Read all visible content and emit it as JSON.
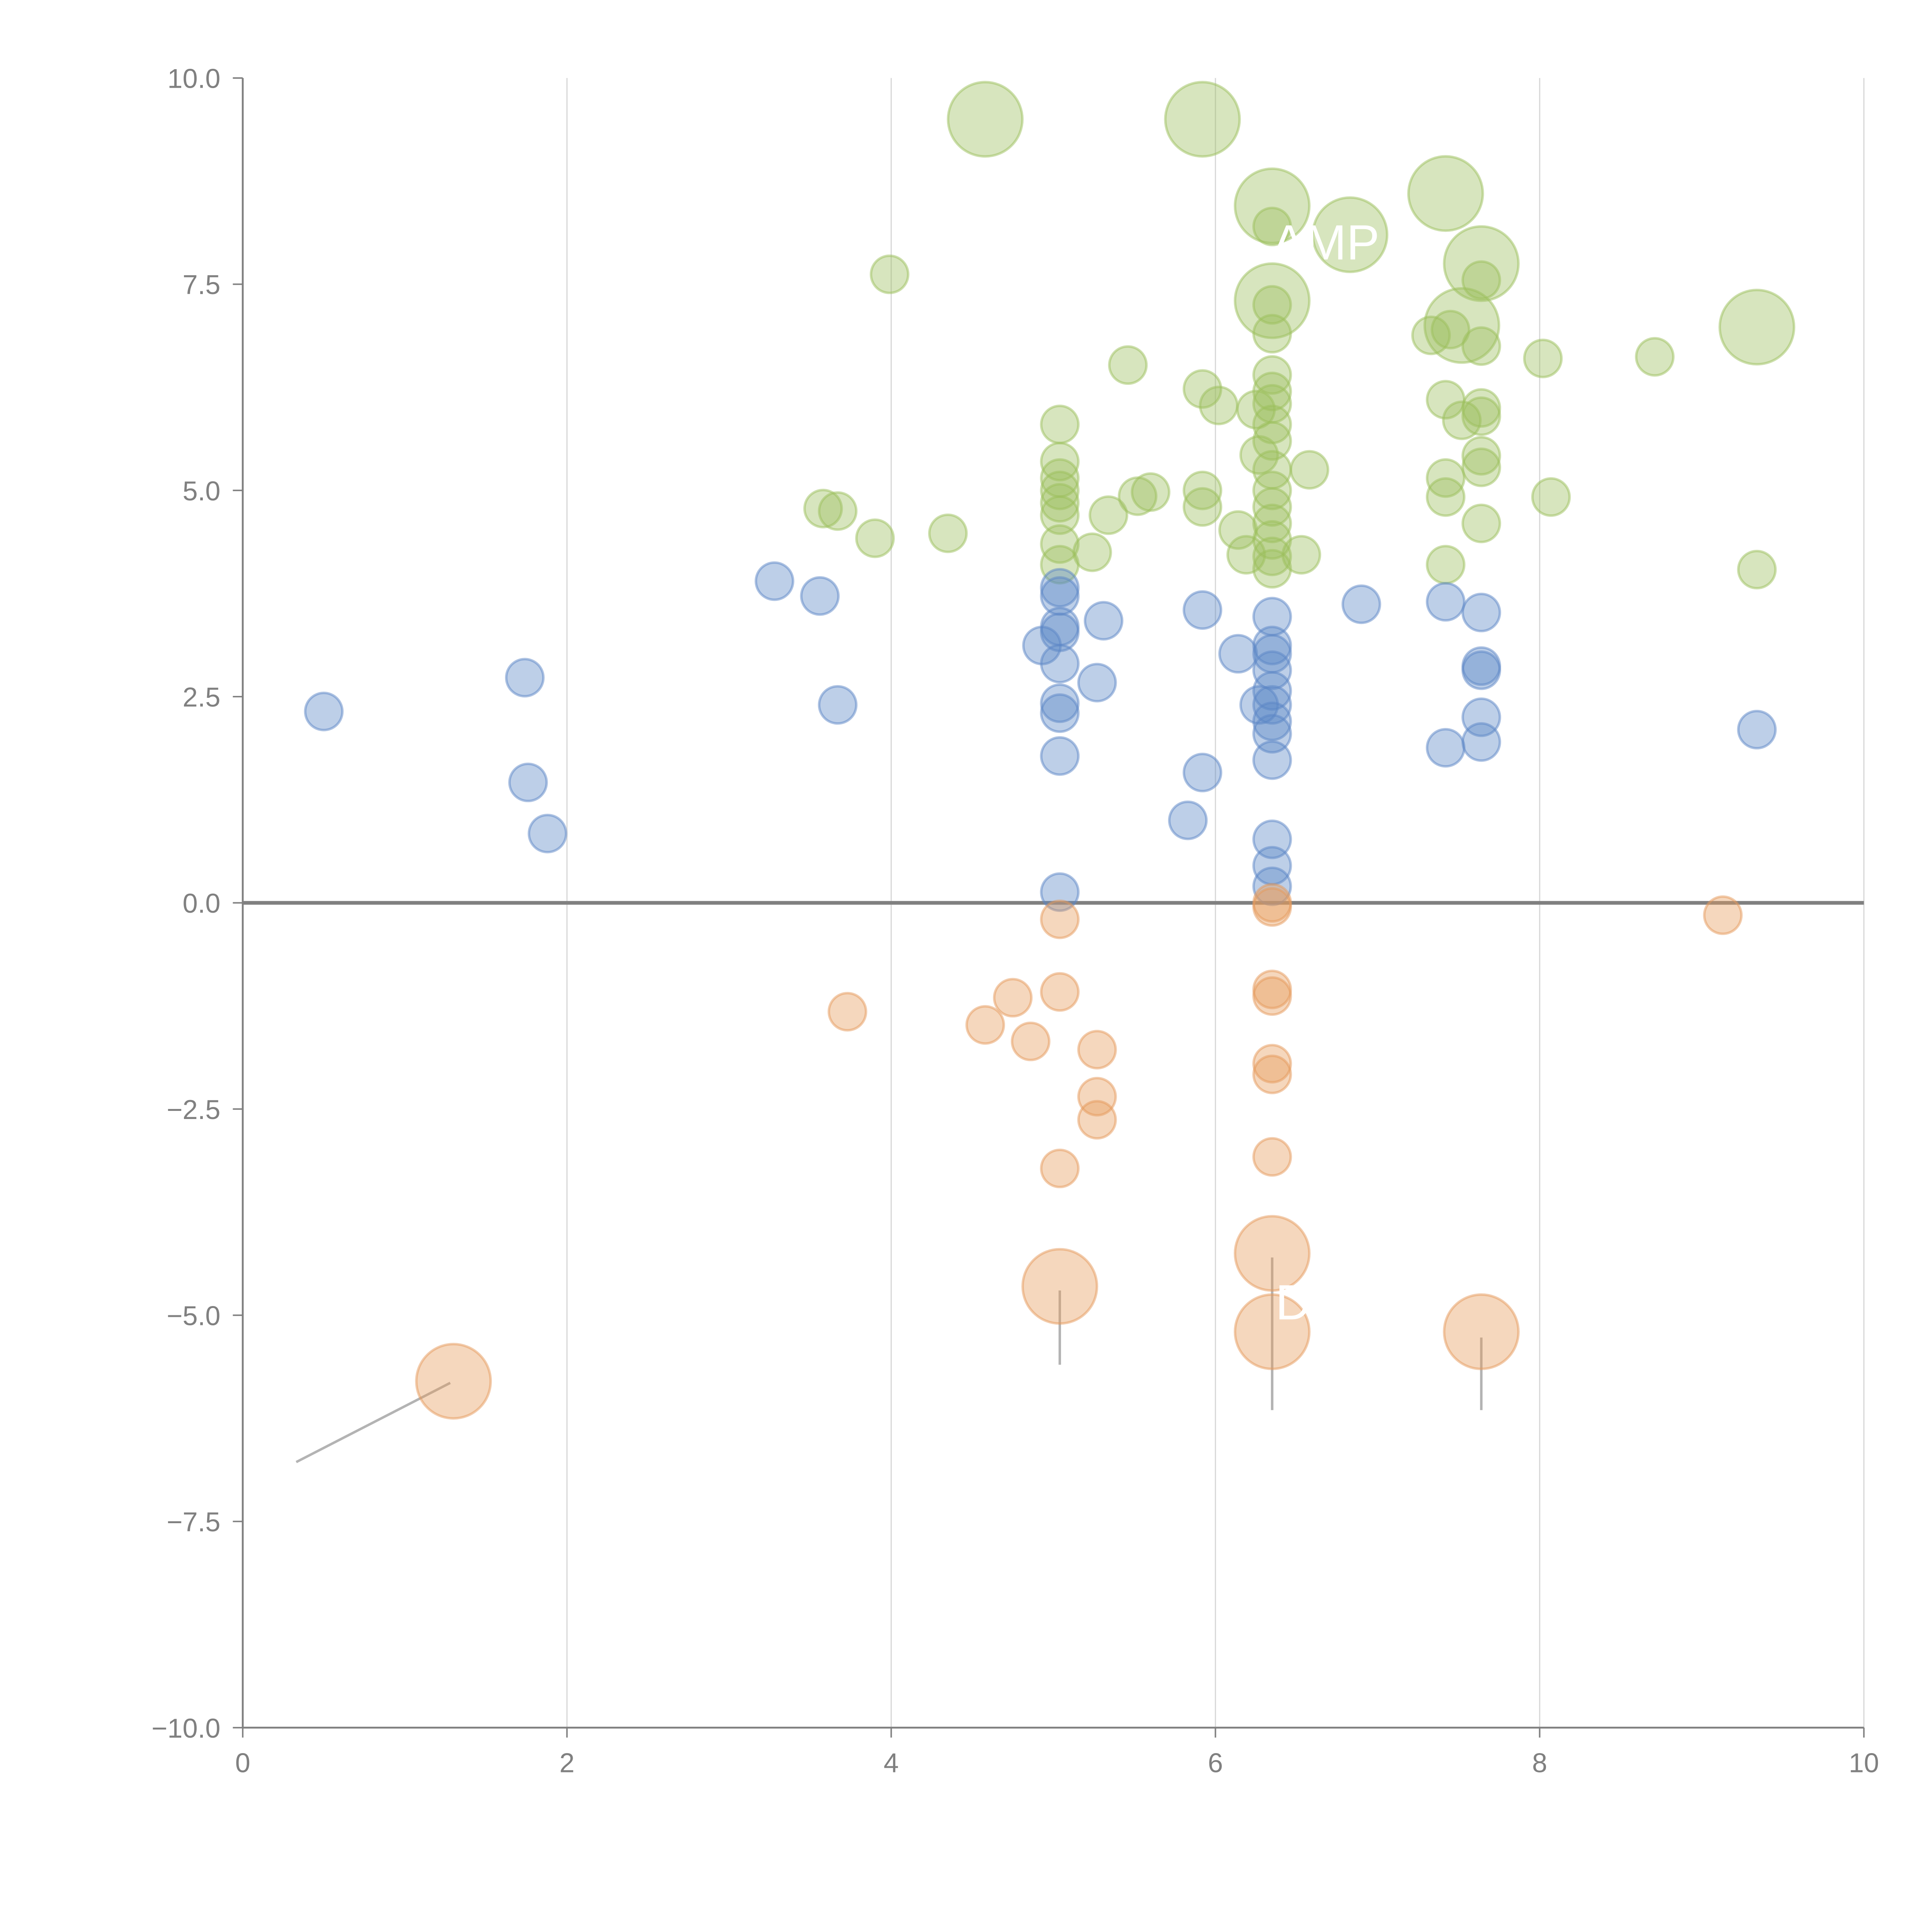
{
  "chart_data": {
    "type": "scatter",
    "title": "",
    "xlabel": "",
    "ylabel": "",
    "xlim": [
      0,
      10
    ],
    "ylim": [
      -10,
      10
    ],
    "grid": {
      "x": true,
      "y": false
    },
    "legend": "none",
    "x_ticks": [
      "0",
      "2",
      "4",
      "6",
      "8",
      "10"
    ],
    "y_ticks": [
      "10.0",
      "7.5",
      "5.0",
      "2.5",
      "0.0",
      "−2.5",
      "−5.0",
      "−7.5",
      "−10.0"
    ],
    "x_tick_values": [
      0,
      2,
      4,
      6,
      8,
      10
    ],
    "y_tick_values": [
      10,
      7.5,
      5,
      2.5,
      0,
      -2.5,
      -5,
      -7.5,
      -10
    ],
    "reference_line_y": 0,
    "colors": {
      "green": "#9bbf5c",
      "blue": "#5b86c5",
      "orange": "#e59a5b",
      "axis": "#808080",
      "grid": "#d9d9d9"
    },
    "series": [
      {
        "name": "green",
        "points": [
          [
            4.58,
            9.5,
            3
          ],
          [
            5.92,
            9.5,
            3
          ],
          [
            6.35,
            8.45,
            3
          ],
          [
            7.42,
            8.6,
            3
          ],
          [
            6.83,
            8.1,
            3
          ],
          [
            7.64,
            7.75,
            3
          ],
          [
            6.35,
            7.3,
            3
          ],
          [
            7.52,
            7.0,
            3
          ],
          [
            9.34,
            6.98,
            3
          ],
          [
            3.99,
            7.62,
            1
          ],
          [
            6.35,
            8.2,
            1
          ],
          [
            7.64,
            7.55,
            1
          ],
          [
            6.35,
            7.25,
            1
          ],
          [
            6.35,
            6.9,
            1
          ],
          [
            7.33,
            6.88,
            1
          ],
          [
            7.45,
            6.95,
            1
          ],
          [
            7.64,
            6.75,
            1
          ],
          [
            8.02,
            6.6,
            1
          ],
          [
            8.71,
            6.62,
            1
          ],
          [
            5.46,
            6.52,
            1
          ],
          [
            5.92,
            6.23,
            1
          ],
          [
            6.02,
            6.03,
            1
          ],
          [
            6.35,
            6.4,
            1
          ],
          [
            6.35,
            6.2,
            1
          ],
          [
            6.35,
            6.05,
            1
          ],
          [
            6.25,
            5.98,
            1
          ],
          [
            7.42,
            6.1,
            1
          ],
          [
            7.52,
            5.85,
            1
          ],
          [
            7.64,
            6.0,
            1
          ],
          [
            7.64,
            5.9,
            1
          ],
          [
            5.04,
            5.8,
            1
          ],
          [
            6.35,
            5.8,
            1
          ],
          [
            6.35,
            5.6,
            1
          ],
          [
            6.27,
            5.43,
            1
          ],
          [
            6.35,
            5.25,
            1
          ],
          [
            6.58,
            5.25,
            1
          ],
          [
            7.64,
            5.42,
            1
          ],
          [
            7.64,
            5.28,
            1
          ],
          [
            7.42,
            5.15,
            1
          ],
          [
            7.42,
            4.92,
            1
          ],
          [
            8.07,
            4.92,
            1
          ],
          [
            5.04,
            5.35,
            1
          ],
          [
            5.04,
            5.15,
            1
          ],
          [
            5.04,
            5.0,
            1
          ],
          [
            5.04,
            4.85,
            1
          ],
          [
            5.04,
            4.7,
            1
          ],
          [
            5.04,
            4.35,
            1
          ],
          [
            5.04,
            4.1,
            1
          ],
          [
            5.92,
            5.0,
            1
          ],
          [
            5.92,
            4.8,
            1
          ],
          [
            5.6,
            4.98,
            1
          ],
          [
            5.52,
            4.93,
            1
          ],
          [
            5.34,
            4.7,
            1
          ],
          [
            5.24,
            4.25,
            1
          ],
          [
            3.58,
            4.78,
            1
          ],
          [
            3.67,
            4.75,
            1
          ],
          [
            3.9,
            4.42,
            1
          ],
          [
            4.35,
            4.48,
            1
          ],
          [
            6.35,
            5.0,
            1
          ],
          [
            6.35,
            4.8,
            1
          ],
          [
            6.35,
            4.6,
            1
          ],
          [
            6.35,
            4.4,
            1
          ],
          [
            6.35,
            4.2,
            1
          ],
          [
            6.35,
            4.05,
            1
          ],
          [
            6.14,
            4.52,
            1
          ],
          [
            6.19,
            4.22,
            1
          ],
          [
            6.53,
            4.22,
            1
          ],
          [
            7.64,
            4.6,
            1
          ],
          [
            7.42,
            4.1,
            1
          ],
          [
            9.34,
            4.04,
            1
          ]
        ]
      },
      {
        "name": "blue",
        "points": [
          [
            3.28,
            3.9,
            1
          ],
          [
            3.56,
            3.72,
            1
          ],
          [
            5.04,
            3.82,
            1
          ],
          [
            5.04,
            3.72,
            1
          ],
          [
            5.04,
            3.35,
            1
          ],
          [
            5.04,
            3.28,
            1
          ],
          [
            4.93,
            3.12,
            1
          ],
          [
            5.04,
            2.9,
            1
          ],
          [
            5.31,
            3.42,
            1
          ],
          [
            5.27,
            2.67,
            1
          ],
          [
            5.04,
            2.42,
            1
          ],
          [
            5.04,
            2.3,
            1
          ],
          [
            5.04,
            1.78,
            1
          ],
          [
            5.92,
            3.55,
            1
          ],
          [
            6.14,
            3.02,
            1
          ],
          [
            6.35,
            3.47,
            1
          ],
          [
            6.35,
            3.12,
            1
          ],
          [
            6.35,
            3.02,
            1
          ],
          [
            6.35,
            2.82,
            1
          ],
          [
            6.35,
            2.57,
            1
          ],
          [
            6.27,
            2.4,
            1
          ],
          [
            6.35,
            2.4,
            1
          ],
          [
            6.35,
            2.2,
            1
          ],
          [
            6.35,
            2.05,
            1
          ],
          [
            6.35,
            1.73,
            1
          ],
          [
            6.9,
            3.62,
            1
          ],
          [
            7.42,
            3.65,
            1
          ],
          [
            7.64,
            3.52,
            1
          ],
          [
            7.64,
            2.87,
            1
          ],
          [
            7.64,
            2.82,
            1
          ],
          [
            7.64,
            2.25,
            1
          ],
          [
            7.64,
            1.95,
            1
          ],
          [
            7.42,
            1.88,
            1
          ],
          [
            9.34,
            2.1,
            1
          ],
          [
            0.5,
            2.32,
            1
          ],
          [
            1.74,
            2.73,
            1
          ],
          [
            1.76,
            1.46,
            1
          ],
          [
            1.88,
            0.84,
            1
          ],
          [
            3.67,
            2.4,
            1
          ],
          [
            5.92,
            1.58,
            1
          ],
          [
            5.83,
            1.0,
            1
          ],
          [
            6.35,
            0.77,
            1
          ],
          [
            6.35,
            0.45,
            1
          ],
          [
            6.35,
            0.2,
            1
          ],
          [
            5.04,
            0.13,
            1
          ]
        ]
      },
      {
        "name": "orange",
        "points": [
          [
            6.35,
            0.0,
            1
          ],
          [
            6.35,
            -0.05,
            1
          ],
          [
            5.04,
            -0.2,
            1
          ],
          [
            9.13,
            -0.15,
            1
          ],
          [
            3.73,
            -1.32,
            1
          ],
          [
            4.58,
            -1.48,
            1
          ],
          [
            4.75,
            -1.15,
            1
          ],
          [
            4.86,
            -1.68,
            1
          ],
          [
            5.04,
            -1.08,
            1
          ],
          [
            5.27,
            -1.78,
            1
          ],
          [
            5.27,
            -2.35,
            1
          ],
          [
            5.27,
            -2.63,
            1
          ],
          [
            5.04,
            -3.22,
            1
          ],
          [
            6.35,
            -1.05,
            1
          ],
          [
            6.35,
            -1.13,
            1
          ],
          [
            6.35,
            -1.95,
            1
          ],
          [
            6.35,
            -2.08,
            1
          ],
          [
            6.35,
            -3.08,
            1
          ],
          [
            6.35,
            -4.25,
            3
          ],
          [
            5.04,
            -4.65,
            3
          ],
          [
            6.35,
            -5.2,
            3
          ],
          [
            7.64,
            -5.2,
            3
          ],
          [
            1.3,
            -5.8,
            3
          ]
        ]
      }
    ],
    "annotations": [
      {
        "text": "AMP",
        "x": 6.35,
        "y": 7.8
      },
      {
        "text": "D",
        "x": 6.37,
        "y": -5.05
      }
    ],
    "leader_lines": [
      {
        "from": [
          1.28,
          -5.82
        ],
        "to": [
          0.33,
          -6.78
        ]
      },
      {
        "from": [
          5.04,
          -4.7
        ],
        "to": [
          5.04,
          -5.6
        ]
      },
      {
        "from": [
          6.35,
          -4.3
        ],
        "to": [
          6.35,
          -6.15
        ]
      },
      {
        "from": [
          7.64,
          -5.27
        ],
        "to": [
          7.64,
          -6.15
        ]
      }
    ]
  }
}
